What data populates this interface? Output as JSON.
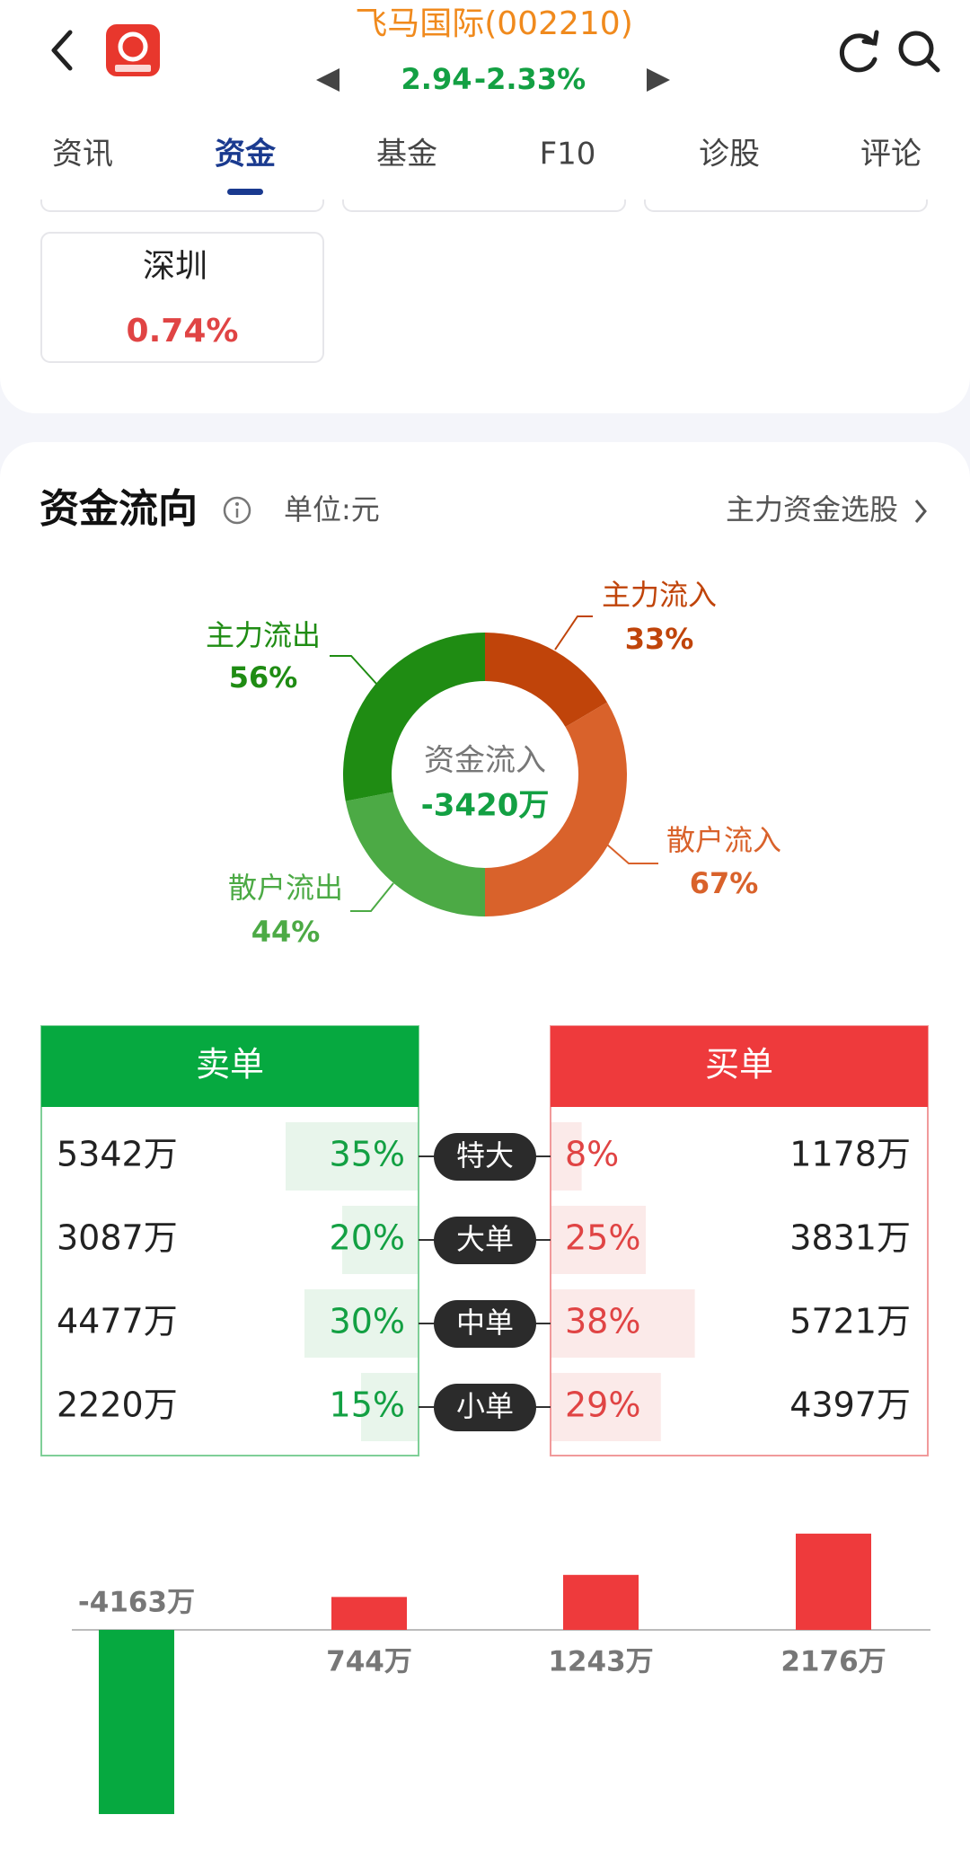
{
  "header": {
    "stock_name": "飞马国际(002210)",
    "price": "2.94",
    "change": "-2.33%"
  },
  "tabs": [
    "资讯",
    "资金",
    "基金",
    "F10",
    "诊股",
    "评论"
  ],
  "active_tab": 1,
  "region_card": {
    "name": "深圳",
    "change": "0.74%"
  },
  "flow_section": {
    "title": "资金流向",
    "unit": "单位:元",
    "link": "主力资金选股"
  },
  "donut": {
    "center_label": "资金流入",
    "center_value": "-3420万",
    "inflow": [
      {
        "name": "主力流入",
        "value": 33,
        "label": "33%",
        "color": "#c0440a"
      },
      {
        "name": "散户流入",
        "value": 67,
        "label": "67%",
        "color": "#d9622b"
      }
    ],
    "outflow": [
      {
        "name": "散户流出",
        "value": 44,
        "label": "44%",
        "color": "#4caa45"
      },
      {
        "name": "主力流出",
        "value": 56,
        "label": "56%",
        "color": "#1f8c13"
      }
    ]
  },
  "orders": {
    "sell_header": "卖单",
    "buy_header": "买单",
    "rows": [
      {
        "type": "特大",
        "sell_amount": "5342万",
        "sell_pct": {
          "value": 35,
          "label": "35%"
        },
        "buy_pct": {
          "value": 8,
          "label": "8%"
        },
        "buy_amount": "1178万"
      },
      {
        "type": "大单",
        "sell_amount": "3087万",
        "sell_pct": {
          "value": 20,
          "label": "20%"
        },
        "buy_pct": {
          "value": 25,
          "label": "25%"
        },
        "buy_amount": "3831万"
      },
      {
        "type": "中单",
        "sell_amount": "4477万",
        "sell_pct": {
          "value": 30,
          "label": "30%"
        },
        "buy_pct": {
          "value": 38,
          "label": "38%"
        },
        "buy_amount": "5721万"
      },
      {
        "type": "小单",
        "sell_amount": "2220万",
        "sell_pct": {
          "value": 15,
          "label": "15%"
        },
        "buy_pct": {
          "value": 29,
          "label": "29%"
        },
        "buy_amount": "4397万"
      }
    ]
  },
  "net_flow": {
    "values": [
      -4163,
      744,
      1243,
      2176
    ],
    "value_labels": [
      "-4163万",
      "744万",
      "1243万",
      "2176万"
    ]
  }
}
